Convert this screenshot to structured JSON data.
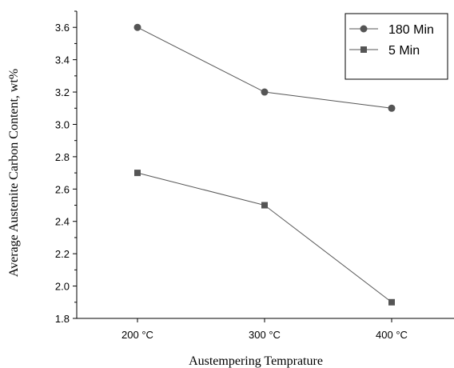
{
  "chart_data": {
    "type": "line",
    "categories": [
      "200 °C",
      "300 °C",
      "400 °C"
    ],
    "xlabel": "Austempering Temprature",
    "ylabel": "Average Austenite Carbon Content, wt%",
    "ylim": [
      1.8,
      3.7
    ],
    "yticks": [
      "1.8",
      "2.0",
      "2.2",
      "2.4",
      "2.6",
      "2.8",
      "3.0",
      "3.2",
      "3.4",
      "3.6"
    ],
    "grid": false,
    "legend_position": "top-right",
    "series": [
      {
        "name": "180 Min",
        "marker": "circle",
        "color": "#555555",
        "values": [
          3.6,
          3.2,
          3.1
        ]
      },
      {
        "name": "5 Min",
        "marker": "square",
        "color": "#555555",
        "values": [
          2.7,
          2.5,
          1.9
        ]
      }
    ]
  }
}
